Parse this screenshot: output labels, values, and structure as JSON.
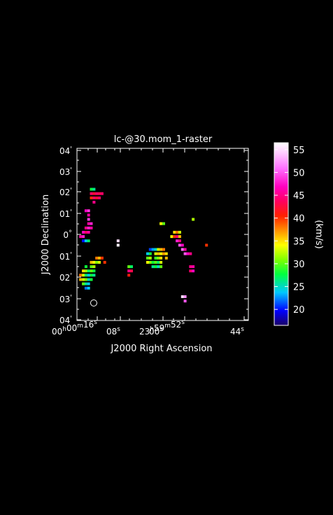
{
  "title": "lc-@30.mom_1-raster",
  "xlabel": "J2000 Right Ascension",
  "ylabel": "J2000 Declination",
  "colorbar_label": "(km/s)",
  "colorbar_ticks": [
    {
      "label": "55",
      "value": 55
    },
    {
      "label": "50",
      "value": 50
    },
    {
      "label": "45",
      "value": 45
    },
    {
      "label": "40",
      "value": 40
    },
    {
      "label": "35",
      "value": 35
    },
    {
      "label": "30",
      "value": 30
    },
    {
      "label": "25",
      "value": 25
    },
    {
      "label": "20",
      "value": 20
    }
  ],
  "colorbar_range": [
    16.5,
    56.5
  ],
  "dec_ticks": [
    {
      "deg": "04",
      "min": "'",
      "neg": false
    },
    {
      "deg": "03",
      "min": "'",
      "neg": false
    },
    {
      "deg": "02",
      "min": "'",
      "neg": false
    },
    {
      "deg": "01",
      "min": "'",
      "neg": false
    },
    {
      "deg": "0",
      "min": "°",
      "neg": false
    },
    {
      "deg": "01",
      "min": "'",
      "neg": true
    },
    {
      "deg": "02",
      "min": "'",
      "neg": true
    },
    {
      "deg": "03",
      "min": "'",
      "neg": true
    },
    {
      "deg": "04",
      "min": "'",
      "neg": true
    }
  ],
  "ra_ticks": [
    {
      "parts": [
        [
          "00",
          "h"
        ],
        [
          "00",
          "m"
        ],
        [
          "16",
          "s"
        ]
      ]
    },
    {
      "parts": [
        [
          "08",
          "s"
        ]
      ]
    },
    {
      "parts": [
        [
          "00",
          "s"
        ]
      ]
    },
    {
      "parts": [
        [
          "23",
          "h"
        ],
        [
          "59",
          "m"
        ],
        [
          "52",
          "s"
        ]
      ]
    },
    {
      "parts": [
        [
          "44",
          "s"
        ]
      ]
    }
  ],
  "chart_data": {
    "type": "heatmap",
    "title": "lc-@30.mom_1-raster",
    "xlabel": "J2000 Right Ascension",
    "ylabel": "J2000 Declination",
    "colorbar_unit": "(km/s)",
    "colorbar_range": [
      16.5,
      56.5
    ],
    "colormap": "rainbow",
    "x_ticks": [
      "00h00m16s",
      "08s",
      "00s",
      "23h59m52s",
      "44s"
    ],
    "y_ticks": [
      "04'",
      "03'",
      "02'",
      "01'",
      "0°",
      "-01'",
      "-02'",
      "-03'",
      "-04'"
    ],
    "beam": "circle, lower-left",
    "pixels": [
      [
        -10.7,
        2.1,
        28
      ],
      [
        -10.3,
        2.1,
        26
      ],
      [
        -10.7,
        1.9,
        44
      ],
      [
        -10.3,
        1.9,
        42
      ],
      [
        -9.9,
        1.9,
        44
      ],
      [
        -9.5,
        1.9,
        43
      ],
      [
        -9.1,
        1.9,
        44
      ],
      [
        -10.7,
        1.7,
        40
      ],
      [
        -10.3,
        1.7,
        44
      ],
      [
        -9.9,
        1.7,
        42
      ],
      [
        -9.5,
        1.7,
        44
      ],
      [
        -10.3,
        1.5,
        45
      ],
      [
        -11.1,
        1.1,
        49
      ],
      [
        -11.5,
        1.1,
        47
      ],
      [
        -11.1,
        0.9,
        46
      ],
      [
        -11.1,
        0.7,
        49
      ],
      [
        -11.1,
        0.5,
        46
      ],
      [
        -10.7,
        0.5,
        48
      ],
      [
        -11.5,
        0.3,
        45
      ],
      [
        -11.1,
        0.3,
        48
      ],
      [
        -10.7,
        0.3,
        46
      ],
      [
        -11.9,
        0.1,
        47
      ],
      [
        -11.5,
        0.1,
        44
      ],
      [
        -11.1,
        0.1,
        46
      ],
      [
        -12.3,
        -0.1,
        46
      ],
      [
        -11.9,
        -0.1,
        48
      ],
      [
        -11.9,
        -0.3,
        20
      ],
      [
        -11.5,
        -0.3,
        24
      ],
      [
        -11.1,
        -0.3,
        27
      ],
      [
        -9.9,
        -1.1,
        38
      ],
      [
        -9.5,
        -1.1,
        36
      ],
      [
        -9.1,
        -1.1,
        40
      ],
      [
        -10.7,
        -1.3,
        36
      ],
      [
        -10.3,
        -1.3,
        34
      ],
      [
        -9.9,
        -1.3,
        31
      ],
      [
        -9.5,
        -1.3,
        33
      ],
      [
        -8.7,
        -1.3,
        40
      ],
      [
        -10.7,
        -1.5,
        30
      ],
      [
        -10.3,
        -1.5,
        32
      ],
      [
        -11.5,
        -1.5,
        28
      ],
      [
        -11.9,
        -1.7,
        35
      ],
      [
        -11.5,
        -1.7,
        32
      ],
      [
        -11.1,
        -1.7,
        27
      ],
      [
        -10.7,
        -1.7,
        30
      ],
      [
        -10.3,
        -1.7,
        28
      ],
      [
        -12.3,
        -1.9,
        38
      ],
      [
        -11.9,
        -1.9,
        33
      ],
      [
        -11.5,
        -1.9,
        27
      ],
      [
        -11.1,
        -1.9,
        24
      ],
      [
        -10.7,
        -1.9,
        28
      ],
      [
        -10.3,
        -1.9,
        26
      ],
      [
        -12.3,
        -2.1,
        36
      ],
      [
        -11.9,
        -2.1,
        33
      ],
      [
        -11.5,
        -2.1,
        31
      ],
      [
        -11.1,
        -2.1,
        25
      ],
      [
        -10.7,
        -2.1,
        28
      ],
      [
        -11.9,
        -2.3,
        30
      ],
      [
        -11.5,
        -2.3,
        26
      ],
      [
        -11.1,
        -2.3,
        24
      ],
      [
        -11.5,
        -2.5,
        22
      ],
      [
        -11.1,
        -2.5,
        24
      ],
      [
        -6.7,
        -0.3,
        55
      ],
      [
        -6.7,
        -0.5,
        56
      ],
      [
        -5.1,
        -1.5,
        30
      ],
      [
        -4.7,
        -1.5,
        27
      ],
      [
        -5.1,
        -1.7,
        45
      ],
      [
        -4.7,
        -1.7,
        43
      ],
      [
        -5.1,
        -1.9,
        41
      ],
      [
        -0.3,
        0.5,
        34
      ],
      [
        0.1,
        0.5,
        30
      ],
      [
        -1.9,
        -0.7,
        21
      ],
      [
        -1.5,
        -0.7,
        23
      ],
      [
        -1.1,
        -0.7,
        25
      ],
      [
        -0.7,
        -0.7,
        33
      ],
      [
        -0.3,
        -0.7,
        36
      ],
      [
        0.1,
        -0.7,
        38
      ],
      [
        -2.3,
        -0.9,
        24
      ],
      [
        -1.9,
        -0.9,
        28
      ],
      [
        -1.1,
        -0.9,
        33
      ],
      [
        -0.7,
        -0.9,
        36
      ],
      [
        -0.3,
        -0.9,
        34
      ],
      [
        0.1,
        -0.9,
        37
      ],
      [
        0.5,
        -0.9,
        35
      ],
      [
        -2.3,
        -1.1,
        30
      ],
      [
        -1.9,
        -1.1,
        32
      ],
      [
        -1.1,
        -1.1,
        29
      ],
      [
        -0.7,
        -1.1,
        31
      ],
      [
        -0.3,
        -1.1,
        35
      ],
      [
        0.5,
        -1.1,
        36
      ],
      [
        -2.3,
        -1.3,
        34
      ],
      [
        -1.9,
        -1.3,
        31
      ],
      [
        -1.5,
        -1.3,
        28
      ],
      [
        -1.1,
        -1.3,
        30
      ],
      [
        -0.7,
        -1.3,
        27
      ],
      [
        -0.3,
        -1.3,
        33
      ],
      [
        -1.5,
        -1.5,
        26
      ],
      [
        -1.1,
        -1.5,
        28
      ],
      [
        -0.7,
        -1.5,
        25
      ],
      [
        -0.3,
        -1.5,
        30
      ],
      [
        1.7,
        0.1,
        35
      ],
      [
        2.1,
        0.1,
        38
      ],
      [
        2.5,
        0.1,
        33
      ],
      [
        1.3,
        -0.1,
        34
      ],
      [
        1.7,
        -0.1,
        40
      ],
      [
        2.1,
        -0.1,
        44
      ],
      [
        2.5,
        -0.1,
        36
      ],
      [
        2.1,
        -0.3,
        48
      ],
      [
        2.5,
        -0.3,
        45
      ],
      [
        2.5,
        -0.5,
        50
      ],
      [
        2.9,
        -0.5,
        47
      ],
      [
        2.9,
        -0.7,
        51
      ],
      [
        3.3,
        -0.7,
        46
      ],
      [
        3.3,
        -0.9,
        50
      ],
      [
        3.7,
        -0.9,
        47
      ],
      [
        4.1,
        -0.9,
        45
      ],
      [
        4.5,
        0.7,
        32
      ],
      [
        6.5,
        -0.5,
        40
      ],
      [
        4.1,
        -1.5,
        45
      ],
      [
        4.5,
        -1.5,
        46
      ],
      [
        4.1,
        -1.7,
        44
      ],
      [
        4.5,
        -1.7,
        47
      ],
      [
        2.9,
        -2.9,
        55
      ],
      [
        3.3,
        -2.9,
        52
      ],
      [
        3.3,
        -3.1,
        50
      ]
    ]
  }
}
